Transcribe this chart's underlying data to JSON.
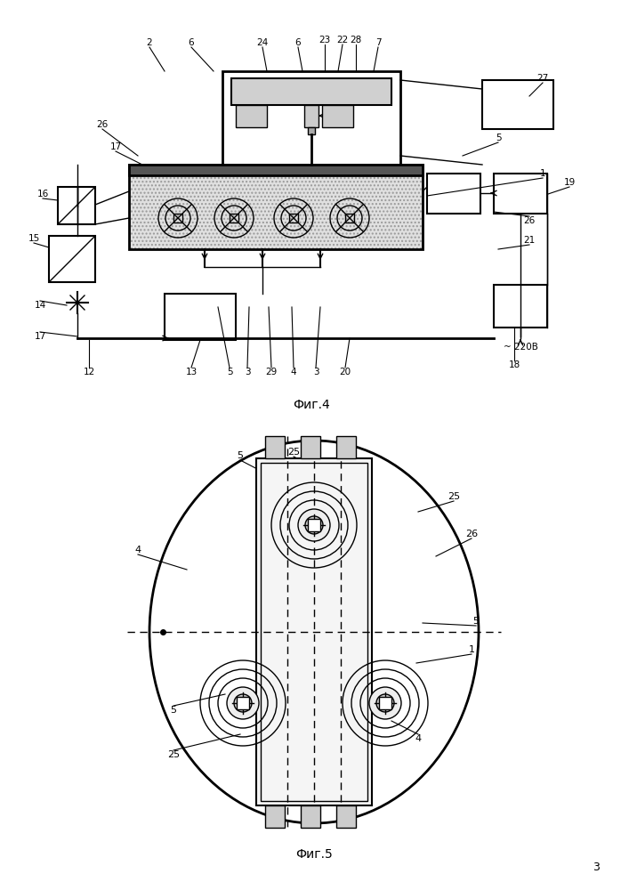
{
  "fig4_caption": "Фиг.4",
  "fig5_caption": "Фиг.5",
  "page_number": "3",
  "lc": "#000000",
  "bg": "#ffffff",
  "lw": 1.0,
  "tlw": 2.0
}
